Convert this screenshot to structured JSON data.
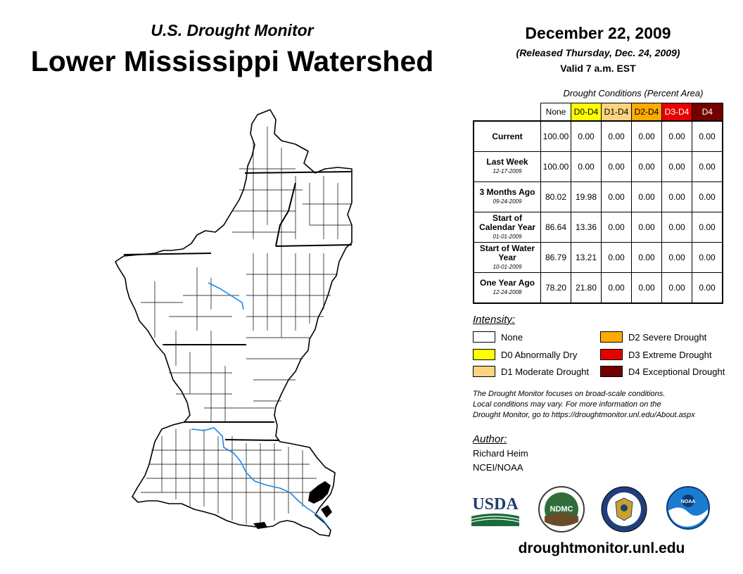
{
  "header": {
    "subtitle": "U.S. Drought Monitor",
    "title": "Lower Mississippi Watershed",
    "date": "December 22, 2009",
    "released": "(Released Thursday, Dec. 24, 2009)",
    "valid": "Valid 7 a.m. EST"
  },
  "conditions": {
    "caption": "Drought Conditions (Percent Area)",
    "columns": [
      {
        "label": "None",
        "color": "#ffffff",
        "text_color": "#000000"
      },
      {
        "label": "D0-D4",
        "color": "#ffff00",
        "text_color": "#000000"
      },
      {
        "label": "D1-D4",
        "color": "#fcd37f",
        "text_color": "#000000"
      },
      {
        "label": "D2-D4",
        "color": "#ffaa00",
        "text_color": "#000000"
      },
      {
        "label": "D3-D4",
        "color": "#e60000",
        "text_color": "#ffffff"
      },
      {
        "label": "D4",
        "color": "#730000",
        "text_color": "#ffffff"
      }
    ],
    "rows": [
      {
        "label": "Current",
        "date": "",
        "values": [
          "100.00",
          "0.00",
          "0.00",
          "0.00",
          "0.00",
          "0.00"
        ]
      },
      {
        "label": "Last Week",
        "date": "12-17-2009",
        "values": [
          "100.00",
          "0.00",
          "0.00",
          "0.00",
          "0.00",
          "0.00"
        ]
      },
      {
        "label": "3 Months Ago",
        "date": "09-24-2009",
        "values": [
          "80.02",
          "19.98",
          "0.00",
          "0.00",
          "0.00",
          "0.00"
        ]
      },
      {
        "label": "Start of Calendar Year",
        "date": "01-01-2009",
        "values": [
          "86.64",
          "13.36",
          "0.00",
          "0.00",
          "0.00",
          "0.00"
        ]
      },
      {
        "label": "Start of Water Year",
        "date": "10-01-2009",
        "values": [
          "86.79",
          "13.21",
          "0.00",
          "0.00",
          "0.00",
          "0.00"
        ]
      },
      {
        "label": "One Year Ago",
        "date": "12-24-2008",
        "values": [
          "78.20",
          "21.80",
          "0.00",
          "0.00",
          "0.00",
          "0.00"
        ]
      }
    ]
  },
  "legend": {
    "title": "Intensity:",
    "items": [
      {
        "label": "None",
        "color": "#ffffff"
      },
      {
        "label": "D0 Abnormally Dry",
        "color": "#ffff00"
      },
      {
        "label": "D1 Moderate Drought",
        "color": "#fcd37f"
      },
      {
        "label": "D2 Severe Drought",
        "color": "#ffaa00"
      },
      {
        "label": "D3 Extreme Drought",
        "color": "#e60000"
      },
      {
        "label": "D4 Exceptional Drought",
        "color": "#730000"
      }
    ]
  },
  "disclaimer": {
    "line1": "The Drought Monitor focuses on broad-scale conditions.",
    "line2": "Local conditions may vary. For more information on the",
    "line3": "Drought Monitor, go to https://droughtmonitor.unl.edu/About.aspx"
  },
  "author": {
    "label": "Author:",
    "name": "Richard Heim",
    "org": "NCEI/NOAA"
  },
  "logos": {
    "usda": "USDA",
    "ndmc": "NDMC",
    "noaa": "NOAA"
  },
  "footer": {
    "url": "droughtmonitor.unl.edu"
  },
  "map": {
    "river_color": "#1e88e5",
    "fill_color": "#ffffff",
    "border_color": "#000000"
  }
}
